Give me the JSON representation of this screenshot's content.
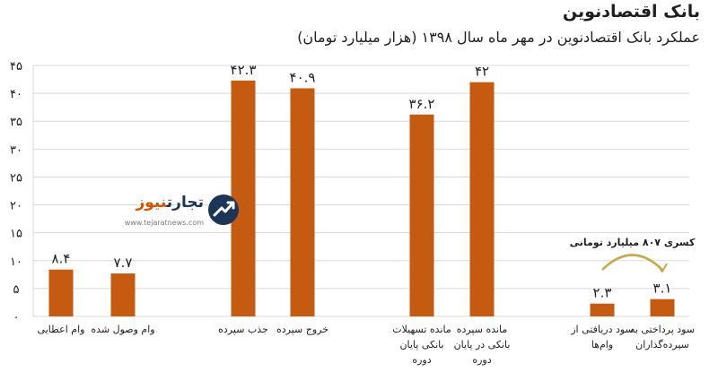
{
  "chart_data": {
    "type": "bar",
    "title": "بانک اقتصادنوین",
    "subtitle": "عملکرد بانک اقتصادنوین در مهر ماه سال ۱۳۹۸ (هزار میلیارد تومان)",
    "ylim": [
      0,
      45
    ],
    "yticks": [
      0,
      5,
      10,
      15,
      20,
      25,
      30,
      35,
      40,
      45
    ],
    "ytick_labels": [
      "۰",
      "۵",
      "۱۰",
      "۱۵",
      "۲۰",
      "۲۵",
      "۳۰",
      "۳۵",
      "۴۰",
      "۴۵"
    ],
    "grid": "horizontal",
    "bar_color": "#c55a11",
    "grid_color": "#d9d9d9",
    "categories": [
      [
        "وام اعطایی"
      ],
      [
        "وام وصول شده"
      ],
      [
        "جذب سپرده"
      ],
      [
        "خروج سپرده"
      ],
      [
        "مانده تسهیلات",
        "بانکی پایان",
        "دوره"
      ],
      [
        "مانده سپرده",
        "بانکی در پایان",
        "دوره"
      ],
      [
        "سود دریافتی از",
        "وام‌ها"
      ],
      [
        "سود پرداختی به",
        "سپرده‌گذاران"
      ]
    ],
    "values": [
      8.4,
      7.7,
      42.3,
      40.9,
      36.2,
      42,
      2.3,
      3.1
    ],
    "value_labels": [
      "۸.۴",
      "۷.۷",
      "۴۲.۳",
      "۴۰.۹",
      "۳۶.۲",
      "۴۲",
      "۲.۳",
      "۳.۱"
    ],
    "annotation": "کسری ۸۰۷ میلیارد تومانی"
  },
  "logo": {
    "brand_part1": "تجارت",
    "brand_part2": "نیوز",
    "site": "www.tejaratnews.com"
  }
}
